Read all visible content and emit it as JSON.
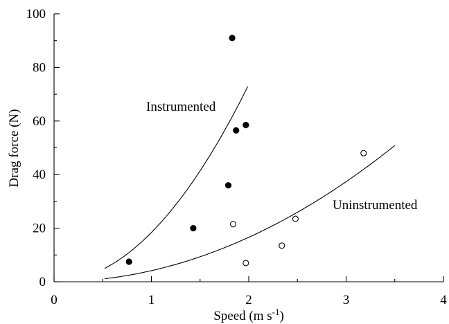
{
  "chart_data": {
    "type": "scatter",
    "xlabel": "Speed (m s",
    "xlabel_sup": "-1",
    "xlabel_suffix": ")",
    "ylabel": "Drag force (N)",
    "xlim": [
      0,
      4
    ],
    "ylim": [
      0,
      100
    ],
    "x_ticks": [
      0,
      1,
      2,
      3,
      4
    ],
    "y_ticks": [
      0,
      20,
      40,
      60,
      80,
      100
    ],
    "x_tick_labels": [
      "0",
      "1",
      "2",
      "3",
      "4"
    ],
    "y_tick_labels": [
      "0",
      "20",
      "40",
      "60",
      "80",
      "100"
    ],
    "grid": false,
    "series": [
      {
        "name": "Instrumented",
        "marker": "filled-circle",
        "color": "#000000",
        "points": [
          {
            "x": 0.77,
            "y": 7.5
          },
          {
            "x": 1.43,
            "y": 20
          },
          {
            "x": 1.79,
            "y": 36
          },
          {
            "x": 1.83,
            "y": 91
          },
          {
            "x": 1.87,
            "y": 56.5
          },
          {
            "x": 1.97,
            "y": 58.5
          }
        ],
        "curve": {
          "x_range": [
            0.52,
            1.99
          ],
          "coefficient": 18.4,
          "exponent": 2
        }
      },
      {
        "name": "Uninstrumented",
        "marker": "open-circle",
        "color": "#000000",
        "points": [
          {
            "x": 1.84,
            "y": 21.5
          },
          {
            "x": 1.97,
            "y": 7
          },
          {
            "x": 2.34,
            "y": 13.5
          },
          {
            "x": 2.48,
            "y": 23.5
          },
          {
            "x": 3.18,
            "y": 48
          }
        ],
        "curve": {
          "x_range": [
            0.52,
            3.5
          ],
          "coefficient": 4.15,
          "exponent": 2
        }
      }
    ]
  }
}
